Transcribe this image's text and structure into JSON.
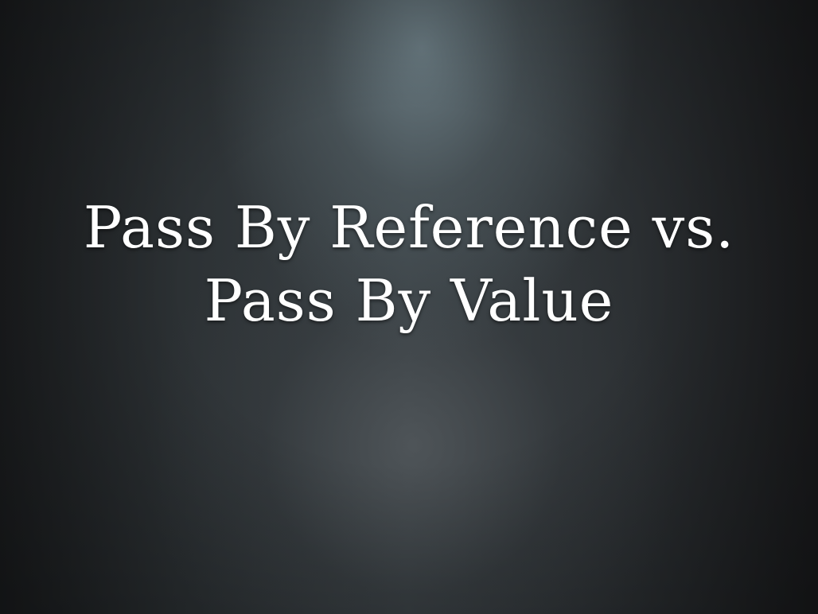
{
  "slide": {
    "title_lines": [
      "Pass By Reference vs.",
      "Pass By Value"
    ]
  }
}
